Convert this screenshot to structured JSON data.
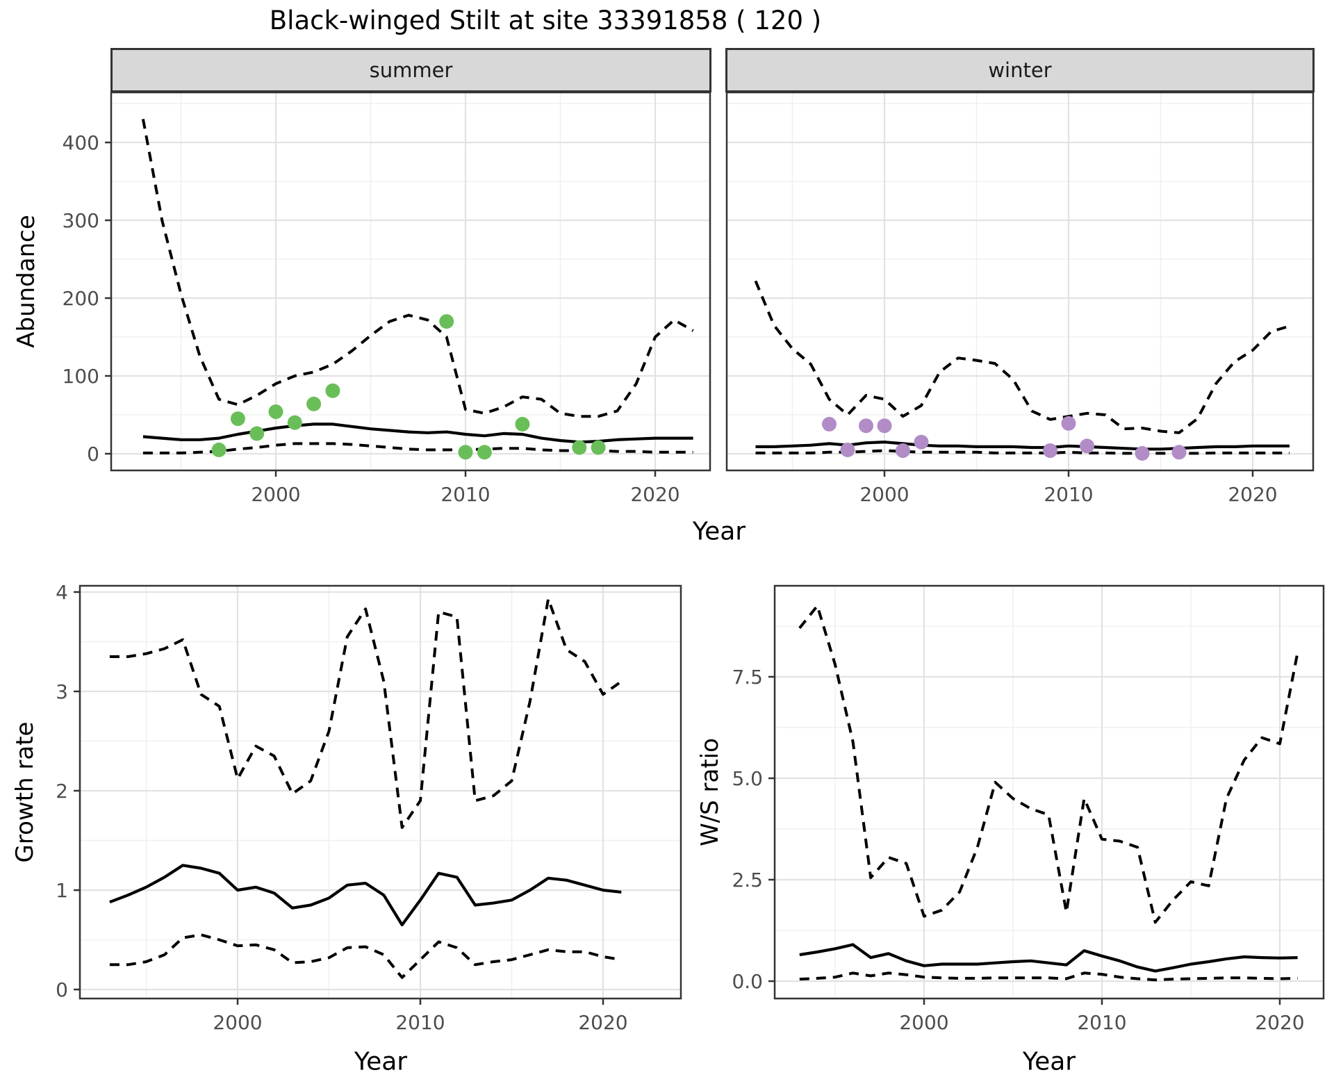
{
  "title": "Black-winged Stilt at site 33391858 ( 120 )",
  "colors": {
    "summer_points": "#6abe59",
    "winter_points": "#b18cc6",
    "line": "#000000",
    "panel_border": "#333333",
    "strip_background": "#d8d8d8",
    "grid_major": "#e2e2e2",
    "grid_minor": "#f0f0f0",
    "axis_text": "#4d4d4d"
  },
  "chart_data": [
    {
      "id": "abundance-summer",
      "type": "line",
      "facet": "summer",
      "ylabel": "Abundance",
      "xlabel": "Year",
      "x_ticks": [
        2000,
        2010,
        2020
      ],
      "y_ticks": [
        0,
        100,
        200,
        300,
        400
      ],
      "xlim": [
        1991.3,
        2022.9
      ],
      "ylim": [
        -21,
        464
      ],
      "grid": true,
      "years": [
        1993,
        1994,
        1995,
        1996,
        1997,
        1998,
        1999,
        2000,
        2001,
        2002,
        2003,
        2004,
        2005,
        2006,
        2007,
        2008,
        2009,
        2010,
        2011,
        2012,
        2013,
        2014,
        2015,
        2016,
        2017,
        2018,
        2019,
        2020,
        2021,
        2022
      ],
      "series": [
        {
          "name": "upper-95ci",
          "style": "dashed",
          "values": [
            430,
            300,
            205,
            125,
            70,
            63,
            75,
            90,
            100,
            105,
            115,
            132,
            152,
            170,
            178,
            172,
            150,
            57,
            52,
            60,
            73,
            70,
            52,
            48,
            48,
            55,
            90,
            150,
            172,
            158
          ]
        },
        {
          "name": "median",
          "style": "solid",
          "values": [
            22,
            20,
            18,
            18,
            20,
            25,
            29,
            33,
            36,
            38,
            38,
            35,
            32,
            30,
            28,
            27,
            28,
            25,
            23,
            26,
            25,
            20,
            17,
            15,
            16,
            18,
            19,
            20,
            20,
            20
          ]
        },
        {
          "name": "lower-95ci",
          "style": "dashed",
          "values": [
            1,
            1,
            1,
            2,
            3,
            6,
            8,
            11,
            13,
            13,
            13,
            12,
            10,
            8,
            6,
            5,
            5,
            5,
            6,
            7,
            7,
            5,
            4,
            4,
            4,
            3,
            3,
            2,
            2,
            2
          ]
        }
      ],
      "points": {
        "name": "summer-observations",
        "color_key": "summer_points",
        "data": [
          [
            1997,
            5
          ],
          [
            1998,
            45
          ],
          [
            1999,
            26
          ],
          [
            2000,
            54
          ],
          [
            2001,
            40
          ],
          [
            2002,
            64
          ],
          [
            2003,
            81
          ],
          [
            2009,
            170
          ],
          [
            2010,
            2
          ],
          [
            2011,
            2
          ],
          [
            2013,
            38
          ],
          [
            2016,
            8
          ],
          [
            2017,
            8
          ]
        ]
      }
    },
    {
      "id": "abundance-winter",
      "type": "line",
      "facet": "winter",
      "ylabel": "Abundance",
      "xlabel": "Year",
      "x_ticks": [
        2000,
        2010,
        2020
      ],
      "y_ticks": [
        0,
        100,
        200,
        300,
        400
      ],
      "xlim": [
        1991.5,
        2023.3
      ],
      "ylim": [
        -21,
        464
      ],
      "grid": true,
      "years": [
        1993,
        1994,
        1995,
        1996,
        1997,
        1998,
        1999,
        2000,
        2001,
        2002,
        2003,
        2004,
        2005,
        2006,
        2007,
        2008,
        2009,
        2010,
        2011,
        2012,
        2013,
        2014,
        2015,
        2016,
        2017,
        2018,
        2019,
        2020,
        2021,
        2022
      ],
      "series": [
        {
          "name": "upper-95ci",
          "style": "dashed",
          "values": [
            222,
            165,
            135,
            115,
            70,
            50,
            75,
            70,
            48,
            62,
            105,
            123,
            120,
            116,
            95,
            55,
            44,
            48,
            52,
            50,
            32,
            33,
            29,
            27,
            45,
            90,
            118,
            133,
            157,
            164
          ]
        },
        {
          "name": "median",
          "style": "solid",
          "values": [
            9,
            9,
            10,
            11,
            13,
            11,
            14,
            15,
            13,
            11,
            10,
            10,
            9,
            9,
            9,
            8,
            8,
            10,
            9,
            8,
            7,
            6,
            6,
            7,
            8,
            9,
            9,
            10,
            10,
            10
          ]
        },
        {
          "name": "lower-95ci",
          "style": "dashed",
          "values": [
            1,
            1,
            1,
            1,
            2,
            2,
            3,
            4,
            3,
            2,
            2,
            2,
            2,
            1,
            1,
            1,
            1,
            2,
            1,
            1,
            0.5,
            0.5,
            0.5,
            0.5,
            0.5,
            1,
            1,
            1,
            1,
            1
          ]
        }
      ],
      "points": {
        "name": "winter-observations",
        "color_key": "winter_points",
        "data": [
          [
            1997,
            38
          ],
          [
            1998,
            5
          ],
          [
            1999,
            36
          ],
          [
            2000,
            36
          ],
          [
            2001,
            4
          ],
          [
            2002,
            15
          ],
          [
            2009,
            4
          ],
          [
            2010,
            39
          ],
          [
            2011,
            10
          ],
          [
            2014,
            0.5
          ],
          [
            2016,
            2
          ]
        ]
      }
    },
    {
      "id": "growth-rate",
      "type": "line",
      "facet": null,
      "ylabel": "Growth rate",
      "xlabel": "Year",
      "x_ticks": [
        2000,
        2010,
        2020
      ],
      "y_ticks": [
        0,
        1,
        2,
        3,
        4
      ],
      "xlim": [
        1991.4,
        2024.3
      ],
      "ylim": [
        -0.09,
        4.06
      ],
      "grid": true,
      "years": [
        1993,
        1994,
        1995,
        1996,
        1997,
        1998,
        1999,
        2000,
        2001,
        2002,
        2003,
        2004,
        2005,
        2006,
        2007,
        2008,
        2009,
        2010,
        2011,
        2012,
        2013,
        2014,
        2015,
        2016,
        2017,
        2018,
        2019,
        2020,
        2021
      ],
      "series": [
        {
          "name": "upper-95ci",
          "style": "dashed",
          "values": [
            3.35,
            3.35,
            3.38,
            3.43,
            3.52,
            2.97,
            2.85,
            2.12,
            2.45,
            2.35,
            1.97,
            2.1,
            2.6,
            3.55,
            3.83,
            3.1,
            1.63,
            1.9,
            3.8,
            3.75,
            1.9,
            1.95,
            2.1,
            2.9,
            3.93,
            3.42,
            3.3,
            2.97,
            3.1
          ]
        },
        {
          "name": "median",
          "style": "solid",
          "values": [
            0.88,
            0.95,
            1.03,
            1.13,
            1.25,
            1.22,
            1.17,
            1.0,
            1.03,
            0.97,
            0.82,
            0.85,
            0.92,
            1.05,
            1.07,
            0.95,
            0.65,
            0.9,
            1.17,
            1.13,
            0.85,
            0.87,
            0.9,
            1.0,
            1.12,
            1.1,
            1.05,
            1.0,
            0.98
          ]
        },
        {
          "name": "lower-95ci",
          "style": "dashed",
          "values": [
            0.25,
            0.25,
            0.28,
            0.35,
            0.52,
            0.55,
            0.5,
            0.44,
            0.45,
            0.4,
            0.27,
            0.28,
            0.32,
            0.42,
            0.43,
            0.35,
            0.12,
            0.3,
            0.48,
            0.42,
            0.25,
            0.28,
            0.3,
            0.35,
            0.4,
            0.38,
            0.38,
            0.33,
            0.3
          ]
        }
      ],
      "points": null
    },
    {
      "id": "ws-ratio",
      "type": "line",
      "facet": null,
      "ylabel": "W/S ratio",
      "xlabel": "Year",
      "x_ticks": [
        2000,
        2010,
        2020
      ],
      "y_ticks_labels": [
        "0.0",
        "2.5",
        "5.0",
        "7.5"
      ],
      "y_ticks": [
        0,
        2.5,
        5,
        7.5
      ],
      "xlim": [
        1991.6,
        2022.5
      ],
      "ylim": [
        -0.43,
        9.74
      ],
      "grid": true,
      "years": [
        1993,
        1994,
        1995,
        1996,
        1997,
        1998,
        1999,
        2000,
        2001,
        2002,
        2003,
        2004,
        2005,
        2006,
        2007,
        2008,
        2009,
        2010,
        2011,
        2012,
        2013,
        2014,
        2015,
        2016,
        2017,
        2018,
        2019,
        2020,
        2021
      ],
      "series": [
        {
          "name": "upper-95ci",
          "style": "dashed",
          "values": [
            8.7,
            9.25,
            7.8,
            5.9,
            2.55,
            3.05,
            2.9,
            1.6,
            1.75,
            2.2,
            3.3,
            4.9,
            4.5,
            4.25,
            4.1,
            1.7,
            4.5,
            3.5,
            3.45,
            3.3,
            1.45,
            2.0,
            2.45,
            2.35,
            4.5,
            5.45,
            6.0,
            5.85,
            8.1
          ]
        },
        {
          "name": "median",
          "style": "solid",
          "values": [
            0.65,
            0.72,
            0.8,
            0.9,
            0.58,
            0.68,
            0.5,
            0.38,
            0.42,
            0.42,
            0.42,
            0.45,
            0.48,
            0.5,
            0.45,
            0.4,
            0.75,
            0.62,
            0.5,
            0.35,
            0.25,
            0.33,
            0.42,
            0.48,
            0.55,
            0.6,
            0.58,
            0.57,
            0.58
          ]
        },
        {
          "name": "lower-95ci",
          "style": "dashed",
          "values": [
            0.05,
            0.07,
            0.1,
            0.2,
            0.13,
            0.2,
            0.16,
            0.1,
            0.08,
            0.07,
            0.07,
            0.08,
            0.08,
            0.08,
            0.08,
            0.06,
            0.2,
            0.17,
            0.1,
            0.06,
            0.03,
            0.05,
            0.06,
            0.07,
            0.08,
            0.08,
            0.07,
            0.06,
            0.07
          ]
        }
      ],
      "points": null
    }
  ]
}
